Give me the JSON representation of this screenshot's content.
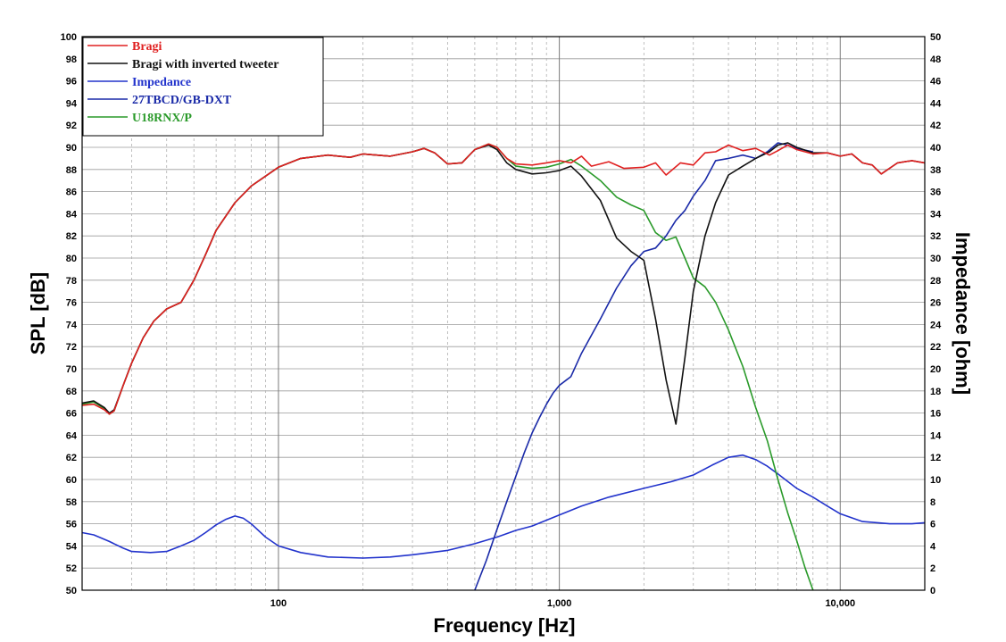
{
  "chart_data": {
    "type": "line",
    "xlabel": "Frequency [Hz]",
    "ylabel": "SPL [dB]",
    "y2label": "Impedance [ohm]",
    "x_scale": "log",
    "xlim": [
      20,
      20000
    ],
    "ylim": [
      50,
      100
    ],
    "y2lim": [
      0,
      50
    ],
    "grid": true,
    "legend_position": "top-left",
    "x_tick_labels": [
      {
        "value": 100,
        "label": "100"
      },
      {
        "value": 1000,
        "label": "1,000"
      },
      {
        "value": 10000,
        "label": "10,000"
      }
    ],
    "y_tick_labels": [
      "50",
      "52",
      "54",
      "56",
      "58",
      "60",
      "62",
      "64",
      "66",
      "68",
      "70",
      "72",
      "74",
      "76",
      "78",
      "80",
      "82",
      "84",
      "86",
      "88",
      "90",
      "92",
      "94",
      "96",
      "98",
      "100"
    ],
    "y2_tick_labels": [
      "0",
      "2",
      "4",
      "6",
      "8",
      "10",
      "12",
      "14",
      "16",
      "18",
      "20",
      "22",
      "24",
      "26",
      "28",
      "30",
      "32",
      "34",
      "36",
      "38",
      "40",
      "42",
      "44",
      "46",
      "48",
      "50"
    ],
    "series": [
      {
        "name": "Bragi",
        "color": "#e02020",
        "axis": "left",
        "x": [
          20,
          22,
          24,
          25,
          26,
          28,
          30,
          33,
          36,
          40,
          45,
          50,
          55,
          60,
          70,
          80,
          100,
          120,
          150,
          180,
          200,
          250,
          300,
          330,
          360,
          400,
          450,
          500,
          560,
          600,
          650,
          700,
          800,
          900,
          1000,
          1100,
          1200,
          1300,
          1500,
          1700,
          2000,
          2200,
          2400,
          2700,
          3000,
          3300,
          3600,
          4000,
          4500,
          5000,
          5600,
          6000,
          6500,
          7000,
          8000,
          9000,
          10000,
          11000,
          12000,
          13000,
          14000,
          16000,
          18000,
          20000
        ],
        "y": [
          66.7,
          66.8,
          66.3,
          65.9,
          66.2,
          68.5,
          70.5,
          72.8,
          74.3,
          75.4,
          76.0,
          78.0,
          80.3,
          82.5,
          85.0,
          86.5,
          88.2,
          89.0,
          89.3,
          89.1,
          89.4,
          89.2,
          89.6,
          89.9,
          89.5,
          88.5,
          88.6,
          89.8,
          90.3,
          90.0,
          89.0,
          88.5,
          88.4,
          88.6,
          88.8,
          88.6,
          89.2,
          88.3,
          88.7,
          88.1,
          88.2,
          88.6,
          87.5,
          88.6,
          88.4,
          89.5,
          89.6,
          90.2,
          89.7,
          89.9,
          89.3,
          89.7,
          90.2,
          89.8,
          89.4,
          89.5,
          89.2,
          89.4,
          88.6,
          88.4,
          87.6,
          88.6,
          88.8,
          88.6
        ]
      },
      {
        "name": "Bragi with inverted tweeter",
        "color": "#111111",
        "axis": "left",
        "x": [
          20,
          22,
          24,
          25,
          26,
          28,
          30,
          33,
          36,
          40,
          45,
          50,
          55,
          60,
          70,
          80,
          100,
          120,
          150,
          180,
          200,
          250,
          300,
          330,
          360,
          400,
          450,
          500,
          560,
          600,
          650,
          700,
          800,
          900,
          1000,
          1100,
          1200,
          1400,
          1600,
          1800,
          2000,
          2200,
          2400,
          2600,
          2800,
          3000,
          3300,
          3600,
          4000,
          4500,
          5000,
          5600,
          6000,
          6500,
          7000,
          8000,
          9000,
          10000,
          11000,
          12000,
          13000,
          14000,
          16000,
          18000,
          20000
        ],
        "y": [
          66.9,
          67.1,
          66.5,
          66.0,
          66.3,
          68.5,
          70.5,
          72.8,
          74.3,
          75.4,
          76.0,
          78.0,
          80.3,
          82.5,
          85.0,
          86.5,
          88.2,
          89.0,
          89.3,
          89.1,
          89.4,
          89.2,
          89.6,
          89.9,
          89.5,
          88.5,
          88.6,
          89.8,
          90.2,
          89.8,
          88.6,
          88.0,
          87.6,
          87.7,
          87.9,
          88.3,
          87.4,
          85.2,
          81.8,
          80.6,
          79.8,
          74.5,
          69.0,
          65.0,
          71.0,
          77.0,
          82.0,
          85.0,
          87.5,
          88.3,
          89.0,
          89.6,
          90.2,
          90.4,
          90.0,
          89.5,
          89.5,
          89.2,
          89.4,
          88.6,
          88.4,
          87.6,
          88.6,
          88.8,
          88.6
        ]
      },
      {
        "name": "Impedance",
        "color": "#2233cc",
        "axis": "right",
        "x": [
          20,
          22,
          25,
          28,
          30,
          35,
          40,
          45,
          50,
          55,
          60,
          65,
          70,
          75,
          80,
          90,
          100,
          120,
          150,
          200,
          250,
          300,
          400,
          500,
          600,
          700,
          800,
          1000,
          1200,
          1500,
          2000,
          2500,
          3000,
          3500,
          4000,
          4500,
          5000,
          5500,
          6000,
          7000,
          8000,
          9000,
          10000,
          12000,
          15000,
          18000,
          20000
        ],
        "y": [
          5.2,
          5.0,
          4.4,
          3.8,
          3.5,
          3.4,
          3.5,
          4.0,
          4.5,
          5.2,
          5.9,
          6.4,
          6.7,
          6.5,
          6.0,
          4.8,
          4.0,
          3.4,
          3.0,
          2.9,
          3.0,
          3.2,
          3.6,
          4.2,
          4.8,
          5.4,
          5.8,
          6.8,
          7.6,
          8.4,
          9.2,
          9.8,
          10.4,
          11.3,
          12.0,
          12.2,
          11.8,
          11.2,
          10.5,
          9.2,
          8.4,
          7.6,
          6.9,
          6.2,
          6.0,
          6.0,
          6.1
        ]
      },
      {
        "name": "27TBCD/GB-DXT",
        "color": "#1a2aa8",
        "axis": "left",
        "x": [
          500,
          550,
          600,
          650,
          700,
          750,
          800,
          850,
          900,
          950,
          1000,
          1100,
          1200,
          1400,
          1600,
          1800,
          2000,
          2200,
          2400,
          2600,
          2800,
          3000,
          3300,
          3600,
          4000,
          4500,
          5000,
          5500,
          6000,
          6500,
          7000,
          8000
        ],
        "y": [
          50.0,
          52.7,
          55.5,
          58.0,
          60.3,
          62.4,
          64.2,
          65.6,
          66.8,
          67.8,
          68.5,
          69.3,
          71.4,
          74.5,
          77.3,
          79.3,
          80.6,
          80.9,
          82.0,
          83.4,
          84.3,
          85.6,
          87.0,
          88.8,
          89.0,
          89.3,
          89.0,
          89.6,
          90.4,
          90.2,
          89.9,
          89.6
        ]
      },
      {
        "name": "U18RNX/P",
        "color": "#2a9a2a",
        "axis": "left",
        "x": [
          20,
          22,
          24,
          25,
          26,
          28,
          30,
          33,
          36,
          40,
          45,
          50,
          55,
          60,
          70,
          80,
          100,
          120,
          150,
          180,
          200,
          250,
          300,
          330,
          360,
          400,
          450,
          500,
          560,
          600,
          650,
          700,
          800,
          900,
          1000,
          1100,
          1200,
          1400,
          1600,
          1800,
          2000,
          2200,
          2400,
          2600,
          2800,
          3000,
          3300,
          3600,
          4000,
          4500,
          5000,
          5500,
          6000,
          6500,
          7000,
          7500,
          8000
        ],
        "y": [
          66.8,
          67.0,
          66.4,
          65.9,
          66.2,
          68.5,
          70.5,
          72.8,
          74.3,
          75.4,
          76.0,
          78.0,
          80.3,
          82.5,
          85.0,
          86.5,
          88.2,
          89.0,
          89.3,
          89.1,
          89.4,
          89.2,
          89.6,
          89.9,
          89.5,
          88.5,
          88.6,
          89.8,
          90.3,
          90.0,
          89.0,
          88.3,
          88.1,
          88.2,
          88.5,
          88.9,
          88.3,
          87.0,
          85.5,
          84.8,
          84.3,
          82.3,
          81.6,
          81.9,
          80.0,
          78.2,
          77.4,
          76.0,
          73.5,
          70.2,
          66.5,
          63.5,
          60.0,
          57.0,
          54.5,
          52.0,
          50.0
        ]
      }
    ]
  }
}
